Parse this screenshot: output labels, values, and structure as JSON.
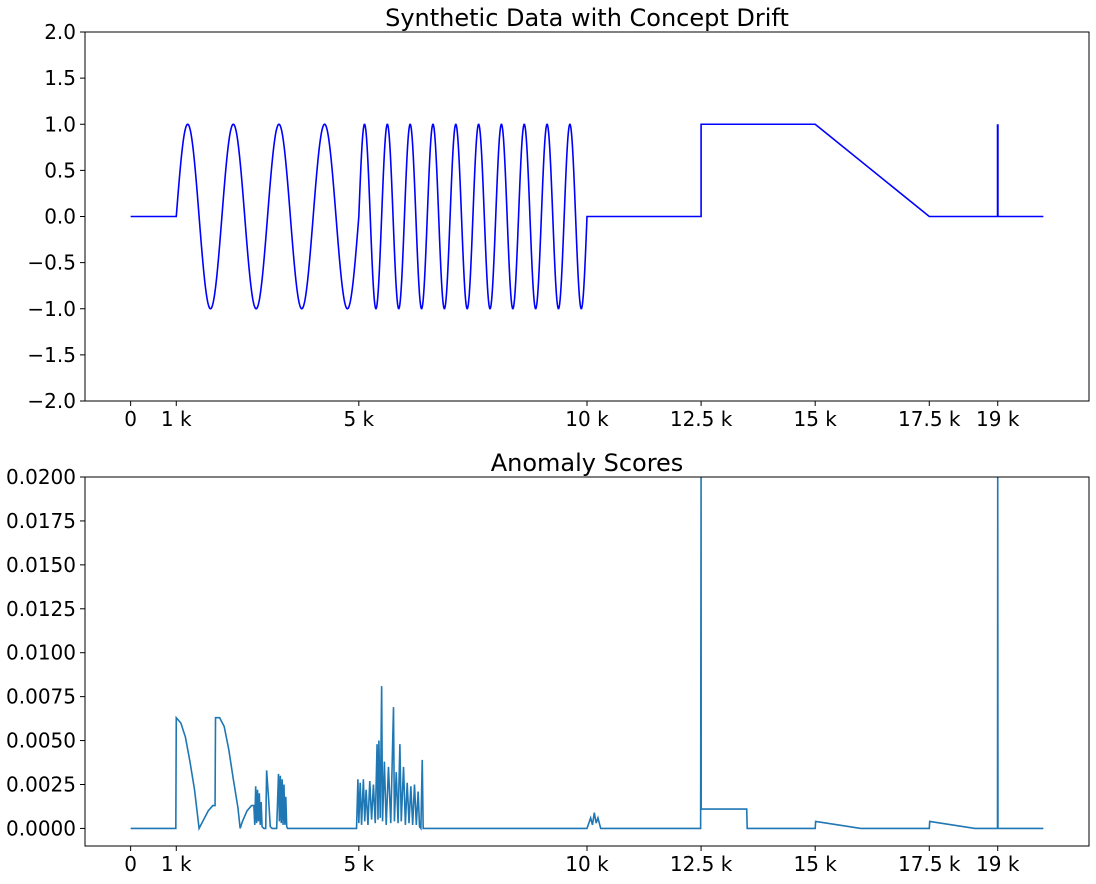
{
  "chart_data": [
    {
      "type": "line",
      "title": "Synthetic Data with Concept Drift",
      "xlabel": "",
      "ylabel": "",
      "xlim": [
        -1000,
        21000
      ],
      "ylim": [
        -2.0,
        2.0
      ],
      "grid": false,
      "line_color": "#0000ff",
      "xticks": [
        0,
        1000,
        5000,
        10000,
        12500,
        15000,
        17500,
        19000
      ],
      "xtick_labels": [
        "0",
        "1 k",
        "5 k",
        "10 k",
        "12.5 k",
        "15 k",
        "17.5 k",
        "19 k"
      ],
      "yticks": [
        -2.0,
        -1.5,
        -1.0,
        -0.5,
        0.0,
        0.5,
        1.0,
        1.5,
        2.0
      ],
      "ytick_labels": [
        "−2.0",
        "−1.5",
        "−1.0",
        "−0.5",
        "0.0",
        "0.5",
        "1.0",
        "1.5",
        "2.0"
      ],
      "segments": [
        {
          "shape": "flat",
          "x": [
            0,
            1000
          ],
          "y": 0
        },
        {
          "shape": "sine",
          "x": [
            1000,
            5000
          ],
          "period": 1000,
          "amplitude": 1
        },
        {
          "shape": "sine",
          "x": [
            5000,
            10000
          ],
          "period": 500,
          "amplitude": 1
        },
        {
          "shape": "flat",
          "x": [
            10000,
            12500
          ],
          "y": 0
        },
        {
          "shape": "step",
          "x": [
            12500,
            15000
          ],
          "y": 1
        },
        {
          "shape": "ramp",
          "x": [
            15000,
            17500
          ],
          "y": [
            1,
            0
          ]
        },
        {
          "shape": "flat",
          "x": [
            17500,
            20000
          ],
          "y": 0
        },
        {
          "shape": "spike",
          "x": 19000,
          "y": 1
        }
      ]
    },
    {
      "type": "line",
      "title": "Anomaly Scores",
      "xlabel": "",
      "ylabel": "",
      "xlim": [
        -1000,
        21000
      ],
      "ylim": [
        -0.001,
        0.02
      ],
      "grid": false,
      "line_color": "#1f77b4",
      "xticks": [
        0,
        1000,
        5000,
        10000,
        12500,
        15000,
        17500,
        19000
      ],
      "xtick_labels": [
        "0",
        "1 k",
        "5 k",
        "10 k",
        "12.5 k",
        "15 k",
        "17.5 k",
        "19 k"
      ],
      "yticks": [
        0.0,
        0.0025,
        0.005,
        0.0075,
        0.01,
        0.0125,
        0.015,
        0.0175,
        0.02
      ],
      "ytick_labels": [
        "0.0000",
        "0.0025",
        "0.0050",
        "0.0075",
        "0.0100",
        "0.0125",
        "0.0150",
        "0.0175",
        "0.0200"
      ],
      "points": [
        [
          0,
          0
        ],
        [
          990,
          0
        ],
        [
          1000,
          0.0063
        ],
        [
          1100,
          0.006
        ],
        [
          1200,
          0.0052
        ],
        [
          1300,
          0.0038
        ],
        [
          1400,
          0.0022
        ],
        [
          1500,
          0
        ],
        [
          1600,
          0.0005
        ],
        [
          1700,
          0.001
        ],
        [
          1800,
          0.0013
        ],
        [
          1850,
          0.0013
        ],
        [
          1860,
          0.0063
        ],
        [
          1950,
          0.0063
        ],
        [
          2050,
          0.0058
        ],
        [
          2150,
          0.0045
        ],
        [
          2250,
          0.0028
        ],
        [
          2350,
          0.0012
        ],
        [
          2400,
          0
        ],
        [
          2450,
          0.0004
        ],
        [
          2550,
          0.001
        ],
        [
          2650,
          0.0013
        ],
        [
          2700,
          0.0013
        ],
        [
          2720,
          0.0002
        ],
        [
          2740,
          0.0024
        ],
        [
          2760,
          0.0003
        ],
        [
          2780,
          0.0022
        ],
        [
          2800,
          0.0004
        ],
        [
          2820,
          0.002
        ],
        [
          2840,
          0.0002
        ],
        [
          2860,
          0.0015
        ],
        [
          2880,
          0.0001
        ],
        [
          2920,
          0
        ],
        [
          2960,
          0
        ],
        [
          2980,
          0.0033
        ],
        [
          3020,
          0.0018
        ],
        [
          3060,
          0.0001
        ],
        [
          3100,
          0
        ],
        [
          3200,
          0
        ],
        [
          3240,
          0.0031
        ],
        [
          3260,
          0.0004
        ],
        [
          3280,
          0.003
        ],
        [
          3300,
          0.0003
        ],
        [
          3320,
          0.0028
        ],
        [
          3340,
          0.0002
        ],
        [
          3360,
          0.0025
        ],
        [
          3380,
          0.0002
        ],
        [
          3400,
          0.0018
        ],
        [
          3420,
          0.0001
        ],
        [
          3440,
          0
        ],
        [
          4950,
          0
        ],
        [
          4980,
          0.0028
        ],
        [
          5000,
          0.0003
        ],
        [
          5030,
          0.0026
        ],
        [
          5060,
          0.0002
        ],
        [
          5100,
          0.0028
        ],
        [
          5130,
          0.0004
        ],
        [
          5160,
          0.0022
        ],
        [
          5200,
          0.0002
        ],
        [
          5240,
          0.0027
        ],
        [
          5280,
          0.0005
        ],
        [
          5320,
          0.0025
        ],
        [
          5360,
          0.0003
        ],
        [
          5400,
          0.0048
        ],
        [
          5420,
          0.0005
        ],
        [
          5440,
          0.005
        ],
        [
          5470,
          0.0006
        ],
        [
          5500,
          0.0081
        ],
        [
          5520,
          0.0004
        ],
        [
          5560,
          0.0038
        ],
        [
          5600,
          0.0002
        ],
        [
          5650,
          0.0035
        ],
        [
          5700,
          0.0003
        ],
        [
          5760,
          0.0069
        ],
        [
          5780,
          0.0004
        ],
        [
          5820,
          0.0032
        ],
        [
          5860,
          0.0003
        ],
        [
          5900,
          0.0048
        ],
        [
          5930,
          0.0004
        ],
        [
          5980,
          0.0035
        ],
        [
          6020,
          0.0002
        ],
        [
          6060,
          0.0026
        ],
        [
          6100,
          0.0003
        ],
        [
          6140,
          0.0024
        ],
        [
          6180,
          0.0002
        ],
        [
          6220,
          0.0025
        ],
        [
          6260,
          0.0002
        ],
        [
          6300,
          0.0021
        ],
        [
          6330,
          0.0001
        ],
        [
          6360,
          0
        ],
        [
          6390,
          0.0039
        ],
        [
          6410,
          0
        ],
        [
          10000,
          0
        ],
        [
          10080,
          0.0006
        ],
        [
          10120,
          0.0002
        ],
        [
          10160,
          0.0009
        ],
        [
          10200,
          0.0003
        ],
        [
          10240,
          0.0006
        ],
        [
          10300,
          0
        ],
        [
          12490,
          0
        ],
        [
          12500,
          0.02
        ],
        [
          12502,
          0.0011
        ],
        [
          13500,
          0.0011
        ],
        [
          13510,
          0
        ],
        [
          15000,
          0
        ],
        [
          15010,
          0.0004
        ],
        [
          16000,
          0
        ],
        [
          17500,
          0
        ],
        [
          17510,
          0.0004
        ],
        [
          18500,
          0
        ],
        [
          18995,
          0
        ],
        [
          19000,
          0.02
        ],
        [
          19005,
          0
        ],
        [
          20000,
          0
        ]
      ]
    }
  ]
}
